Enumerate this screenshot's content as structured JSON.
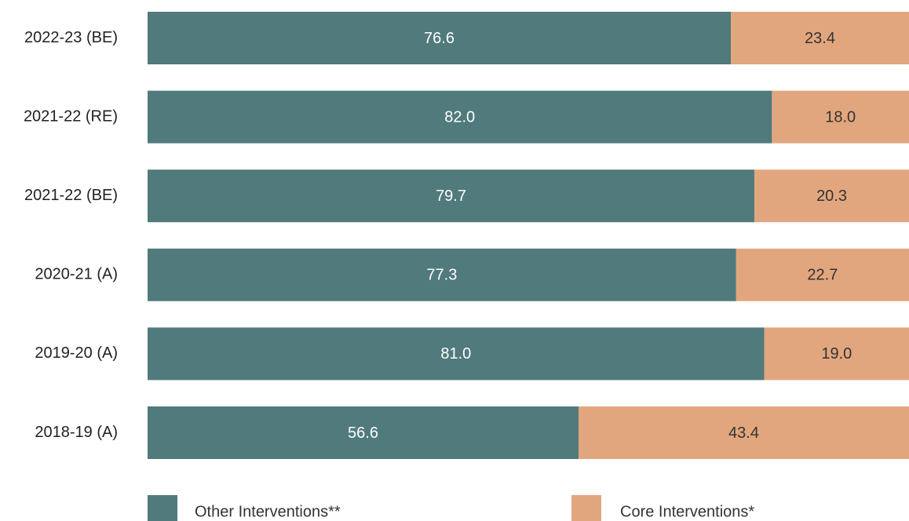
{
  "chart_data": {
    "type": "bar",
    "orientation": "horizontal",
    "stacked": true,
    "title": "",
    "xlabel": "",
    "ylabel": "",
    "xlim": [
      0,
      100
    ],
    "grid": false,
    "legend_position": "bottom",
    "categories": [
      "2022-23 (BE)",
      "2021-22 (RE)",
      "2021-22 (BE)",
      "2020-21 (A)",
      "2019-20 (A)",
      "2018-19 (A)"
    ],
    "series": [
      {
        "name": "Other Interventions**",
        "color": "#517a7c",
        "values": [
          76.6,
          82.0,
          79.7,
          77.3,
          81.0,
          56.6
        ]
      },
      {
        "name": "Core Interventions*",
        "color": "#e2a67e",
        "values": [
          23.4,
          18.0,
          20.3,
          22.7,
          19.0,
          43.4
        ]
      }
    ]
  }
}
